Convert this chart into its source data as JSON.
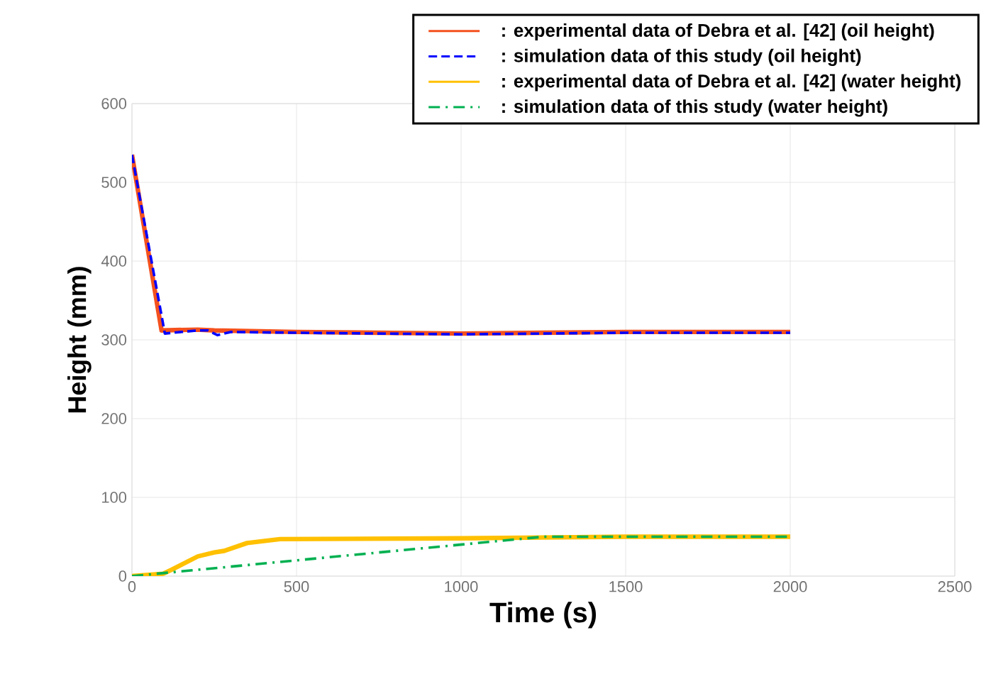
{
  "chart_data": {
    "type": "line",
    "xlabel": "Time (s)",
    "ylabel": "Height (mm)",
    "xlim": [
      0,
      2500
    ],
    "ylim": [
      0,
      600
    ],
    "xticks": [
      0,
      500,
      1000,
      1500,
      2000,
      2500
    ],
    "yticks": [
      0,
      100,
      200,
      300,
      400,
      500,
      600
    ],
    "grid": true,
    "legend": "top right",
    "marker": "none",
    "series": [
      {
        "name": ": experimental data of Debra et al. [42] (oil height)",
        "color": "#f4511e",
        "line_style": "solid",
        "x": [
          0,
          90,
          200,
          250,
          500,
          1000,
          1500,
          2000
        ],
        "values": [
          535,
          312,
          313,
          312,
          310,
          308,
          310,
          310
        ]
      },
      {
        "name": ": simulation data of this study (oil height)",
        "color": "#0000ff",
        "line_style": "dashed",
        "x": [
          0,
          100,
          200,
          230,
          260,
          300,
          500,
          1000,
          1500,
          2000
        ],
        "values": [
          535,
          308,
          312,
          312,
          306,
          310,
          309,
          307,
          309,
          309
        ]
      },
      {
        "name": ": experimental data of Debra et al. [42] (water height)",
        "color": "#ffc000",
        "line_style": "solid",
        "x": [
          0,
          95,
          120,
          200,
          250,
          280,
          350,
          450,
          1000,
          1500,
          2000
        ],
        "values": [
          0,
          3,
          8,
          25,
          30,
          32,
          42,
          47,
          48,
          50,
          50
        ]
      },
      {
        "name": ": simulation data of this study (water height)",
        "color": "#00b050",
        "line_style": "dashdot",
        "x": [
          0,
          1250,
          2000
        ],
        "values": [
          0,
          50,
          50
        ]
      }
    ]
  }
}
